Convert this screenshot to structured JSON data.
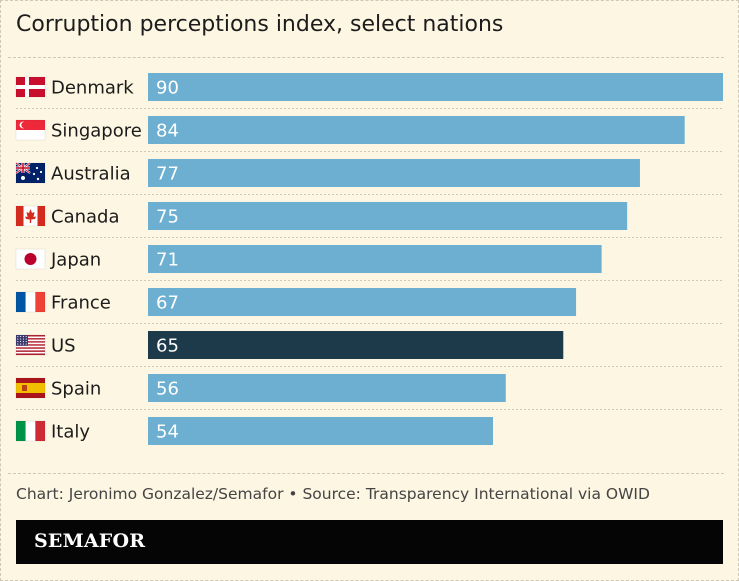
{
  "title": "Corruption perceptions index, select nations",
  "credit": "Chart: Jeronimo Gonzalez/Semafor • Source: Transparency International via OWID",
  "brand": "SEMAFOR",
  "colors": {
    "bar": "#6cafd0",
    "highlight": "#1d3a4a",
    "background": "#fcf6e2",
    "value_text": "#ffffff"
  },
  "chart_data": {
    "type": "bar",
    "orientation": "horizontal",
    "categories": [
      "Denmark",
      "Singapore",
      "Australia",
      "Canada",
      "Japan",
      "France",
      "US",
      "Spain",
      "Italy"
    ],
    "values": [
      90,
      84,
      77,
      75,
      71,
      67,
      65,
      56,
      54
    ],
    "flag_icons": [
      "denmark-flag-icon",
      "singapore-flag-icon",
      "australia-flag-icon",
      "canada-flag-icon",
      "japan-flag-icon",
      "france-flag-icon",
      "us-flag-icon",
      "spain-flag-icon",
      "italy-flag-icon"
    ],
    "highlight": "US",
    "xlim": [
      0,
      90
    ],
    "grid": false,
    "legend": "none"
  }
}
